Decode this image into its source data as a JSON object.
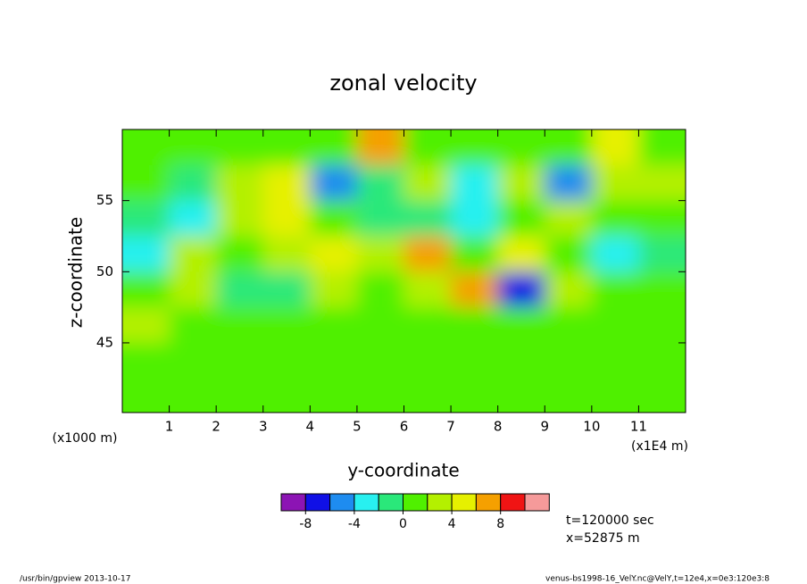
{
  "chart_data": {
    "type": "contour",
    "title": "zonal velocity",
    "x_label": "y-coordinate",
    "y_label": "z-coordinate",
    "x_unit": "(x1E4 m)",
    "y_unit": "(x1000 m)",
    "xlim": [
      0,
      12
    ],
    "xticks": [
      1,
      2,
      3,
      4,
      5,
      6,
      7,
      8,
      9,
      10,
      11
    ],
    "ylim": [
      40.1,
      60
    ],
    "yticks": [
      45,
      50,
      55
    ],
    "x": [
      0.5,
      1.5,
      2.5,
      3.5,
      4.5,
      5.5,
      6.5,
      7.5,
      8.5,
      9.5,
      10.5,
      11.5
    ],
    "y": [
      58.75,
      56.25,
      53.75,
      51.25,
      48.75,
      46.25,
      43.75,
      41.25
    ],
    "z": [
      [
        1,
        1,
        1,
        1,
        1,
        6,
        1,
        1,
        1,
        1,
        5,
        1
      ],
      [
        1,
        -2,
        3,
        5,
        -5,
        -1,
        3,
        -3,
        3,
        -5,
        3,
        3
      ],
      [
        -1,
        -4,
        2,
        5,
        1,
        -2,
        -1,
        -3,
        1,
        2,
        1,
        1
      ],
      [
        -3,
        3,
        1,
        3,
        4,
        3,
        6,
        1,
        4,
        1,
        -4,
        -2
      ],
      [
        0,
        2,
        -2,
        -2,
        3,
        1,
        3,
        7,
        -7,
        3,
        1,
        1
      ],
      [
        2,
        1,
        0,
        1,
        1,
        1,
        1,
        1,
        0,
        1,
        1,
        1
      ],
      [
        1,
        1,
        1,
        1,
        1,
        1,
        0,
        0,
        1,
        1,
        1,
        0
      ],
      [
        1,
        1,
        0,
        1,
        1,
        0,
        1,
        1,
        1,
        1,
        0,
        1
      ]
    ],
    "levels": [
      -8,
      -6,
      -4,
      -2,
      0,
      2,
      4,
      6,
      8
    ],
    "colors": [
      "#8c14b4",
      "#1010e6",
      "#1e8cf0",
      "#28f0f0",
      "#2ae87a",
      "#50f000",
      "#b4f000",
      "#e6f000",
      "#f5a000",
      "#f01414",
      "#f59a9a"
    ],
    "colorbar_ticks": [
      -8,
      -4,
      0,
      4,
      8
    ],
    "annotations": [
      "t=120000 sec",
      "x=52875 m"
    ]
  },
  "footer": {
    "left": "/usr/bin/gpview  2013-10-17",
    "right": "venus-bs1998-16_VelY.nc@VelY,t=12e4,x=0e3:120e3:8"
  }
}
